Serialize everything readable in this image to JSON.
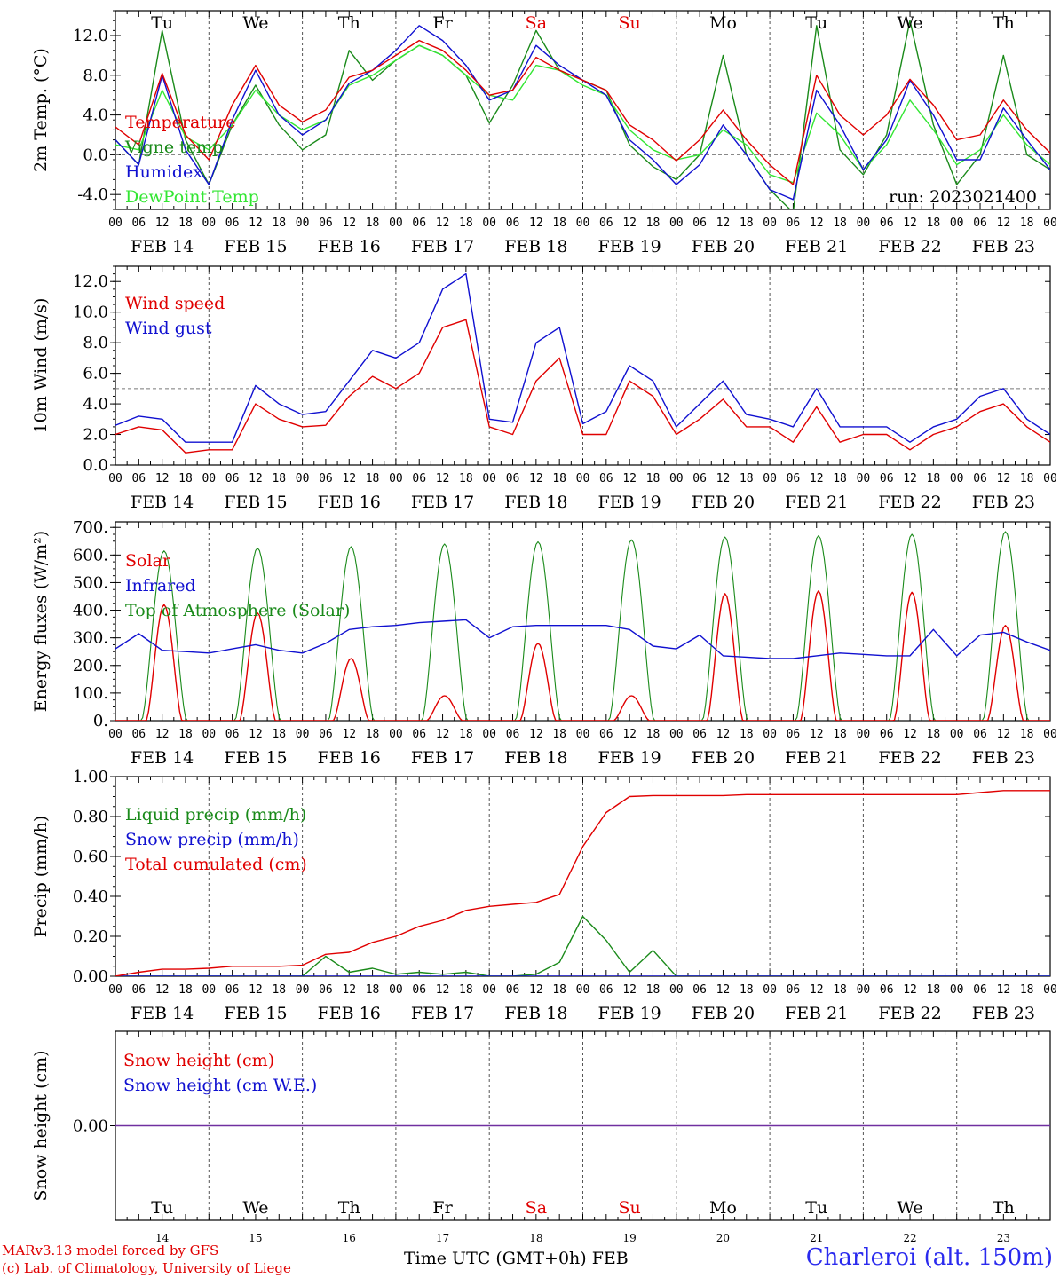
{
  "footer": {
    "credit1": "MARv3.13 model forced by GFS",
    "credit2": "(c) Lab. of Climatology, University of Liege",
    "time_label": "Time UTC (GMT+0h) FEB",
    "station": "Charleroi (alt. 150m)"
  },
  "colors": {
    "temperature": "#e00000",
    "vigne": "#1a8a1a",
    "humidex": "#1010d0",
    "dewpoint": "#33e633",
    "weekend": "#e00000",
    "weekday": "#000000",
    "snow_line": "#7030a0"
  },
  "days": [
    {
      "dow": "Tu",
      "date": "FEB 14",
      "num": "14",
      "weekend": false
    },
    {
      "dow": "We",
      "date": "FEB 15",
      "num": "15",
      "weekend": false
    },
    {
      "dow": "Th",
      "date": "FEB 16",
      "num": "16",
      "weekend": false
    },
    {
      "dow": "Fr",
      "date": "FEB 17",
      "num": "17",
      "weekend": false
    },
    {
      "dow": "Sa",
      "date": "FEB 18",
      "num": "18",
      "weekend": true
    },
    {
      "dow": "Su",
      "date": "FEB 19",
      "num": "19",
      "weekend": true
    },
    {
      "dow": "Mo",
      "date": "FEB 20",
      "num": "20",
      "weekend": false
    },
    {
      "dow": "Tu",
      "date": "FEB 21",
      "num": "21",
      "weekend": false
    },
    {
      "dow": "We",
      "date": "FEB 22",
      "num": "22",
      "weekend": false
    },
    {
      "dow": "Th",
      "date": "FEB 23",
      "num": "23",
      "weekend": false
    }
  ],
  "hour_labels": [
    "00",
    "06",
    "12",
    "18"
  ],
  "chart_data": [
    {
      "type": "line",
      "ylabel": "2m Temp. (°C)",
      "ylim": [
        -5.5,
        14.5
      ],
      "yticks": [
        -4.0,
        0.0,
        4.0,
        8.0,
        12.0
      ],
      "ytick_labels": [
        "-4.0",
        "0.0",
        "4.0",
        "8.0",
        "12.0"
      ],
      "ref_line": 0,
      "annotation": "run: 2023021400",
      "x": [
        0,
        6,
        12,
        18,
        24,
        30,
        36,
        42,
        48,
        54,
        60,
        66,
        72,
        78,
        84,
        90,
        96,
        102,
        108,
        114,
        120,
        126,
        132,
        138,
        144,
        150,
        156,
        162,
        168,
        174,
        180,
        186,
        192,
        198,
        204,
        210,
        216,
        222,
        228,
        234,
        240
      ],
      "series": [
        {
          "name": "Temperature",
          "color": "temperature",
          "values": [
            2.8,
            1.0,
            8.2,
            2.0,
            -0.5,
            5.0,
            9.0,
            5.0,
            3.3,
            4.5,
            7.8,
            8.5,
            10.0,
            11.5,
            10.5,
            8.5,
            6.0,
            6.5,
            9.8,
            8.5,
            7.5,
            6.5,
            3.0,
            1.5,
            -0.6,
            1.5,
            4.5,
            1.5,
            -1.0,
            -3.0,
            8.0,
            4.0,
            2.0,
            4.0,
            7.6,
            5.0,
            1.5,
            2.0,
            5.5,
            2.5,
            0.2
          ]
        },
        {
          "name": "Vigne temp",
          "color": "vigne",
          "values": [
            1.5,
            -1.0,
            12.5,
            1.5,
            -3.0,
            3.0,
            7.0,
            3.0,
            0.5,
            2.0,
            10.5,
            7.5,
            9.5,
            11.0,
            10.0,
            8.0,
            3.2,
            7.0,
            12.5,
            8.5,
            7.5,
            6.5,
            1.0,
            -1.2,
            -2.5,
            0.0,
            10.0,
            0.0,
            -3.5,
            -5.8,
            13.0,
            0.5,
            -2.0,
            2.0,
            13.5,
            3.0,
            -3.0,
            0.0,
            10.0,
            0.0,
            -1.5
          ]
        },
        {
          "name": "Humidex",
          "color": "humidex",
          "values": [
            1.5,
            -1.0,
            8.0,
            0.5,
            -3.0,
            3.5,
            8.5,
            4.0,
            2.0,
            3.5,
            7.2,
            8.5,
            10.5,
            13.0,
            11.5,
            9.0,
            5.5,
            6.5,
            11.0,
            9.0,
            7.5,
            6.0,
            1.5,
            -0.5,
            -3.0,
            -1.0,
            3.0,
            0.0,
            -3.5,
            -4.5,
            6.5,
            3.0,
            -1.5,
            1.5,
            7.5,
            4.0,
            -0.5,
            -0.5,
            4.7,
            1.5,
            -1.5
          ]
        },
        {
          "name": "DewPoint Temp",
          "color": "dewpoint",
          "values": [
            1.0,
            0.5,
            6.5,
            1.8,
            0.5,
            3.0,
            6.5,
            4.0,
            2.5,
            3.5,
            7.0,
            8.0,
            9.5,
            11.0,
            10.0,
            8.0,
            6.0,
            5.5,
            9.0,
            8.5,
            7.0,
            6.0,
            2.5,
            0.5,
            -0.5,
            0.0,
            2.5,
            1.0,
            -2.0,
            -2.8,
            4.2,
            2.0,
            -1.5,
            1.0,
            5.5,
            2.5,
            -1.0,
            0.5,
            4.0,
            1.0,
            -1.0
          ]
        }
      ]
    },
    {
      "type": "line",
      "ylabel": "10m Wind (m/s)",
      "ylim": [
        0,
        13
      ],
      "yticks": [
        0,
        2,
        4,
        6,
        8,
        10,
        12
      ],
      "ytick_labels": [
        "0.0",
        "2.0",
        "4.0",
        "6.0",
        "8.0",
        "10.0",
        "12.0"
      ],
      "ref_line": 5,
      "x": [
        0,
        6,
        12,
        18,
        24,
        30,
        36,
        42,
        48,
        54,
        60,
        66,
        72,
        78,
        84,
        90,
        96,
        102,
        108,
        114,
        120,
        126,
        132,
        138,
        144,
        150,
        156,
        162,
        168,
        174,
        180,
        186,
        192,
        198,
        204,
        210,
        216,
        222,
        228,
        234,
        240
      ],
      "series": [
        {
          "name": "Wind speed",
          "color": "temperature",
          "values": [
            2.0,
            2.5,
            2.3,
            0.8,
            1.0,
            1.0,
            4.0,
            3.0,
            2.5,
            2.6,
            4.5,
            5.8,
            5.0,
            6.0,
            9.0,
            9.5,
            2.5,
            2.0,
            5.5,
            7.0,
            2.0,
            2.0,
            5.5,
            4.5,
            2.0,
            3.0,
            4.3,
            2.5,
            2.5,
            1.5,
            3.8,
            1.5,
            2.0,
            2.0,
            1.0,
            2.0,
            2.5,
            3.5,
            4.0,
            2.5,
            1.5
          ]
        },
        {
          "name": "Wind gust",
          "color": "humidex",
          "values": [
            2.6,
            3.2,
            3.0,
            1.5,
            1.5,
            1.5,
            5.2,
            4.0,
            3.3,
            3.5,
            5.5,
            7.5,
            7.0,
            8.0,
            11.5,
            12.5,
            3.0,
            2.8,
            8.0,
            9.0,
            2.7,
            3.5,
            6.5,
            5.5,
            2.5,
            4.0,
            5.5,
            3.3,
            3.0,
            2.5,
            5.0,
            2.5,
            2.5,
            2.5,
            1.5,
            2.5,
            3.0,
            4.5,
            5.0,
            3.0,
            2.0
          ]
        }
      ]
    },
    {
      "type": "line",
      "ylabel": "Energy fluxes (W/m²)",
      "ylim": [
        0,
        720
      ],
      "yticks": [
        0,
        100,
        200,
        300,
        400,
        500,
        600,
        700
      ],
      "ytick_labels": [
        "0.",
        "100.",
        "200.",
        "300.",
        "400.",
        "500.",
        "600.",
        "700."
      ],
      "solar_peaks": [
        420,
        390,
        225,
        90,
        280,
        90,
        460,
        470,
        465,
        345
      ],
      "toa_peaks": [
        615,
        625,
        630,
        640,
        648,
        655,
        665,
        670,
        675,
        685
      ],
      "infrared_x": [
        0,
        6,
        12,
        18,
        24,
        30,
        36,
        42,
        48,
        54,
        60,
        66,
        72,
        78,
        84,
        90,
        96,
        102,
        108,
        114,
        120,
        126,
        132,
        138,
        144,
        150,
        156,
        162,
        168,
        174,
        180,
        186,
        192,
        198,
        204,
        210,
        216,
        222,
        228,
        234,
        240
      ],
      "infrared_values": [
        260,
        315,
        255,
        250,
        245,
        260,
        275,
        255,
        245,
        280,
        330,
        340,
        345,
        355,
        360,
        365,
        300,
        340,
        345,
        345,
        345,
        345,
        330,
        270,
        260,
        310,
        235,
        230,
        225,
        225,
        235,
        245,
        240,
        235,
        235,
        330,
        235,
        310,
        320,
        285,
        255
      ],
      "series": [
        {
          "name": "Solar",
          "color": "temperature"
        },
        {
          "name": "Infrared",
          "color": "humidex"
        },
        {
          "name": "Top of Atmosphere (Solar)",
          "color": "vigne"
        }
      ]
    },
    {
      "type": "line",
      "ylabel": "Precip (mm/h)",
      "ylim": [
        0,
        1.0
      ],
      "yticks": [
        0,
        0.2,
        0.4,
        0.6,
        0.8,
        1.0
      ],
      "ytick_labels": [
        "0.00",
        "0.20",
        "0.40",
        "0.60",
        "0.80",
        "1.00"
      ],
      "x": [
        0,
        6,
        12,
        18,
        24,
        30,
        36,
        42,
        48,
        54,
        60,
        66,
        72,
        78,
        84,
        90,
        96,
        102,
        108,
        114,
        120,
        126,
        132,
        138,
        144,
        150,
        156,
        162,
        168,
        174,
        180,
        186,
        192,
        198,
        204,
        210,
        216,
        222,
        228,
        234,
        240
      ],
      "series": [
        {
          "name": "Liquid precip (mm/h)",
          "color": "vigne",
          "values": [
            0,
            0,
            0,
            0,
            0,
            0,
            0,
            0,
            0,
            0.1,
            0.02,
            0.04,
            0.01,
            0.02,
            0.01,
            0.02,
            0,
            0,
            0.01,
            0.07,
            0.3,
            0.18,
            0.02,
            0.13,
            0,
            0,
            0,
            0,
            0,
            0,
            0,
            0,
            0,
            0,
            0,
            0,
            0,
            0,
            0,
            0,
            0
          ]
        },
        {
          "name": "Snow precip (mm/h)",
          "color": "humidex",
          "values": [
            0,
            0,
            0,
            0,
            0,
            0,
            0,
            0,
            0,
            0,
            0,
            0,
            0,
            0,
            0,
            0,
            0,
            0,
            0,
            0,
            0,
            0,
            0,
            0,
            0,
            0,
            0,
            0,
            0,
            0,
            0,
            0,
            0,
            0,
            0,
            0,
            0,
            0,
            0,
            0,
            0
          ]
        },
        {
          "name": "Total cumulated (cm)",
          "color": "temperature",
          "values": [
            0,
            0.02,
            0.035,
            0.035,
            0.04,
            0.05,
            0.05,
            0.05,
            0.055,
            0.11,
            0.12,
            0.17,
            0.2,
            0.25,
            0.28,
            0.33,
            0.35,
            0.36,
            0.37,
            0.41,
            0.65,
            0.82,
            0.9,
            0.905,
            0.905,
            0.905,
            0.905,
            0.91,
            0.91,
            0.91,
            0.91,
            0.91,
            0.91,
            0.91,
            0.91,
            0.91,
            0.91,
            0.92,
            0.93,
            0.93,
            0.93
          ]
        }
      ]
    },
    {
      "type": "line",
      "ylabel": "Snow height (cm)",
      "ylim": [
        -1,
        1
      ],
      "yticks": [
        0
      ],
      "ytick_labels": [
        "0.00"
      ],
      "x": [
        0,
        240
      ],
      "series": [
        {
          "name": "Snow height (cm)",
          "color": "temperature",
          "values": [
            0,
            0
          ]
        },
        {
          "name": "Snow height (cm W.E.)",
          "color": "humidex",
          "values": [
            0,
            0
          ]
        }
      ]
    }
  ]
}
